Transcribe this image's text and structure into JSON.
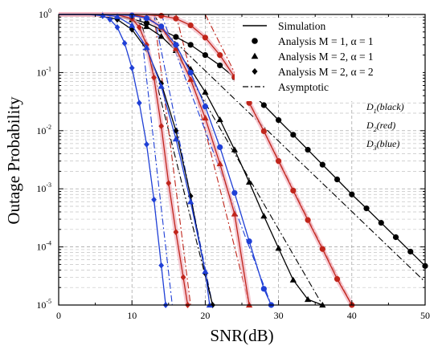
{
  "chart_data": {
    "type": "line",
    "xlabel": "SNR(dB)",
    "ylabel": "Outage Probability",
    "xlim": [
      0,
      50
    ],
    "ylim": [
      1e-05,
      1
    ],
    "yscale": "log",
    "grid": true,
    "x_ticks": [
      "0",
      "10",
      "20",
      "30",
      "40",
      "50"
    ],
    "y_ticks": [
      {
        "base": "10",
        "exp": "0",
        "value": 1
      },
      {
        "base": "10",
        "exp": "-1",
        "value": 0.1
      },
      {
        "base": "10",
        "exp": "-2",
        "value": 0.01
      },
      {
        "base": "10",
        "exp": "-3",
        "value": 0.001
      },
      {
        "base": "10",
        "exp": "-4",
        "value": 0.0001
      },
      {
        "base": "10",
        "exp": "-5",
        "value": 1e-05
      }
    ],
    "legend": {
      "placement": "top-right",
      "entries": [
        {
          "label": "Simulation",
          "style": "solid-line"
        },
        {
          "label": "Analysis M = 1, α = 1",
          "marker": "circle"
        },
        {
          "label": "Analysis M = 2, α = 1",
          "marker": "triangle"
        },
        {
          "label": "Analysis M = 2, α = 2",
          "marker": "diamond"
        },
        {
          "label": "Asymptotic",
          "style": "dash-dot-line"
        }
      ]
    },
    "annotations": [
      {
        "user": "D",
        "index": "1",
        "color_word": "black"
      },
      {
        "user": "D",
        "index": "2",
        "color_word": "red"
      },
      {
        "user": "D",
        "index": "3",
        "color_word": "blue"
      }
    ],
    "colors": {
      "D1": "#000000",
      "D2": "#c0251b",
      "D3": "#1f3fd6"
    },
    "series": [
      {
        "user": "D1",
        "marker": "circle",
        "color": "#000000",
        "x": [
          0,
          2,
          4,
          6,
          8,
          10,
          12,
          14,
          16,
          18,
          20,
          22,
          24,
          26,
          28,
          30,
          32,
          34,
          36,
          38,
          40,
          42,
          44,
          46,
          48,
          50
        ],
        "y": [
          1,
          1,
          1,
          1,
          0.94,
          0.84,
          0.71,
          0.55,
          0.41,
          0.3,
          0.2,
          0.133,
          0.082,
          0.048,
          0.0275,
          0.0152,
          0.0085,
          0.0047,
          0.0026,
          0.00145,
          0.0008,
          0.00046,
          0.00026,
          0.000147,
          8.3e-05,
          4.7e-05
        ]
      },
      {
        "user": "D1",
        "marker": "triangle",
        "color": "#000000",
        "x": [
          0,
          2,
          4,
          6,
          8,
          10,
          12,
          14,
          16,
          18,
          20,
          22,
          24,
          26,
          28,
          30,
          32,
          34,
          36
        ],
        "y": [
          1,
          1,
          1,
          0.98,
          0.93,
          0.81,
          0.62,
          0.42,
          0.24,
          0.115,
          0.046,
          0.0155,
          0.0047,
          0.0013,
          0.00034,
          9.5e-05,
          2.7e-05,
          1.25e-05,
          1e-05
        ]
      },
      {
        "user": "D1",
        "marker": "diamond",
        "color": "#000000",
        "x": [
          0,
          2,
          4,
          6,
          8,
          10,
          12,
          14,
          16,
          18,
          20,
          21
        ],
        "y": [
          1,
          1,
          1,
          0.95,
          0.82,
          0.55,
          0.25,
          0.065,
          0.01,
          0.00075,
          3.5e-05,
          1e-05
        ]
      },
      {
        "user": "D2",
        "marker": "circle",
        "color": "#c0251b",
        "x": [
          0,
          2,
          4,
          6,
          8,
          10,
          12,
          14,
          16,
          18,
          20,
          22,
          24,
          26,
          28,
          30,
          32,
          34,
          36,
          38,
          40
        ],
        "y": [
          1,
          1,
          1,
          1,
          1,
          1,
          0.99,
          0.95,
          0.85,
          0.65,
          0.4,
          0.2,
          0.084,
          0.03,
          0.0098,
          0.003,
          0.00093,
          0.00029,
          9.2e-05,
          2.8e-05,
          1e-05
        ]
      },
      {
        "user": "D2",
        "marker": "triangle",
        "color": "#c0251b",
        "x": [
          0,
          2,
          4,
          6,
          8,
          10,
          12,
          14,
          16,
          18,
          20,
          22,
          24,
          26
        ],
        "y": [
          1,
          1,
          1,
          1,
          1,
          0.99,
          0.9,
          0.6,
          0.26,
          0.076,
          0.0165,
          0.0027,
          0.00037,
          1e-05
        ]
      },
      {
        "user": "D2",
        "marker": "diamond",
        "color": "#c0251b",
        "x": [
          0,
          2,
          4,
          6,
          8,
          10,
          11,
          12,
          13,
          14,
          15,
          16,
          17,
          17.6
        ],
        "y": [
          1,
          1,
          1,
          1,
          0.99,
          0.85,
          0.6,
          0.3,
          0.082,
          0.012,
          0.00125,
          0.00018,
          3e-05,
          1e-05
        ]
      },
      {
        "user": "D3",
        "marker": "circle",
        "color": "#1f3fd6",
        "x": [
          0,
          2,
          4,
          6,
          8,
          10,
          12,
          14,
          16,
          18,
          20,
          22,
          24,
          26,
          28,
          29
        ],
        "y": [
          1,
          1,
          1,
          1,
          0.99,
          0.96,
          0.86,
          0.62,
          0.3,
          0.1,
          0.026,
          0.0052,
          0.00085,
          0.000125,
          1.9e-05,
          1e-05
        ]
      },
      {
        "user": "D3",
        "marker": "triangle",
        "color": "#1f3fd6",
        "x": [
          0,
          2,
          4,
          6,
          8,
          10,
          12,
          14,
          16,
          18,
          20,
          20.6
        ],
        "y": [
          1,
          1,
          1,
          0.99,
          0.92,
          0.65,
          0.27,
          0.058,
          0.0072,
          0.0006,
          3.8e-05,
          1e-05
        ]
      },
      {
        "user": "D3",
        "marker": "diamond",
        "color": "#1f3fd6",
        "x": [
          0,
          2,
          4,
          6,
          7,
          8,
          9,
          10,
          11,
          12,
          13,
          14,
          14.6
        ],
        "y": [
          1,
          1,
          1,
          0.95,
          0.82,
          0.6,
          0.32,
          0.12,
          0.03,
          0.0058,
          0.00065,
          4.8e-05,
          1e-05
        ]
      }
    ],
    "asymptotic": [
      {
        "user": "D1",
        "color": "#000000",
        "x": [
          12,
          50
        ],
        "y": [
          1,
          2.5e-05
        ]
      },
      {
        "user": "D1",
        "color": "#000000",
        "x": [
          13,
          36
        ],
        "y": [
          1,
          1e-05
        ]
      },
      {
        "user": "D1",
        "color": "#000000",
        "x": [
          11,
          21
        ],
        "y": [
          1,
          1e-05
        ]
      },
      {
        "user": "D2",
        "color": "#c0251b",
        "x": [
          20,
          40
        ],
        "y": [
          1,
          1e-05
        ]
      },
      {
        "user": "D2",
        "color": "#c0251b",
        "x": [
          16,
          26
        ],
        "y": [
          1,
          1e-05
        ]
      },
      {
        "user": "D2",
        "color": "#c0251b",
        "x": [
          13,
          18
        ],
        "y": [
          1,
          1e-05
        ]
      },
      {
        "user": "D3",
        "color": "#1f3fd6",
        "x": [
          14,
          29
        ],
        "y": [
          1,
          1e-05
        ]
      },
      {
        "user": "D3",
        "color": "#1f3fd6",
        "x": [
          13,
          21
        ],
        "y": [
          1,
          1e-05
        ]
      },
      {
        "user": "D3",
        "color": "#1f3fd6",
        "x": [
          11,
          15.5
        ],
        "y": [
          1,
          1e-05
        ]
      }
    ]
  }
}
